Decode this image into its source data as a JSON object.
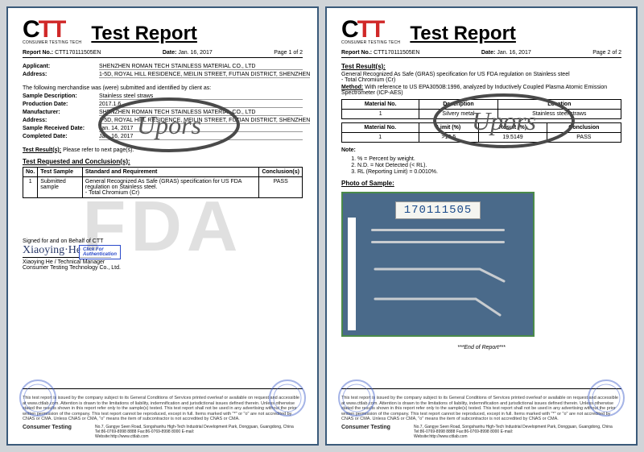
{
  "logo": {
    "main": "CTT",
    "sub": "CONSUMER TESTING TECH",
    "c_color": "#000000",
    "t_color": "#d02828"
  },
  "title": "Test Report",
  "watermark_p1": "FDA",
  "common": {
    "report_no_label": "Report No.:",
    "report_no": "CTT170111505EN",
    "date_label": "Date:",
    "date": "Jan. 16, 2017",
    "footer_company": "Consumer Testing",
    "footer_addr": "No.7, Gangye Seen Road, Songshanhu High-Tech Industrial Development Park, Dongguan, Guangdong, China",
    "footer_tel": "Tel:86-0769-8998 8888    Fax:86-0769-8998 8000    E-mail:",
    "footer_web": "Website:http://www.cttlab.com",
    "disclaimer": "This test report is issued by the company subject to its General Conditions of Services printed overleaf or available on request and accessible at www.cttlab.com. Attention is drawn to the limitations of liability, indemnification and jurisdictional issues defined therein. Unless otherwise stated the results shown in this report refer only to the sample(s) tested. This test report shall not be used in any advertising without the prior written permission of the company. This test report cannot be reproduced, except in full. Items marked with \"*\" or \"o\" are not accredited by CNAS or CMA. Unless CNAS or CMA, \"o\" means the item of subcontractor is not accredited by CNAS or CMA."
  },
  "p1": {
    "page": "Page 1 of 2",
    "applicant_label": "Applicant:",
    "applicant": "SHENZHEN ROMAN TECH STAINLESS MATERIAL CO., LTD",
    "address_label": "Address:",
    "address": "1-5D, ROYAL HILL RESIDENCE, MEILIN STREET, FUTIAN DISTRICT, SHENZHEN",
    "intro": "The following merchandise was (were) submitted and identified by client as:",
    "rows": [
      {
        "k": "Sample Description:",
        "v": "Stainless steel straws"
      },
      {
        "k": "Production Date:",
        "v": "2017.1.6"
      },
      {
        "k": "Manufacturer:",
        "v": "SHENZHEN ROMAN TECH STAINLESS MATERIAL CO., LTD"
      },
      {
        "k": "Address:",
        "v": "1-5D, ROYAL HILL RESIDENCE, MEILIN STREET, FUTIAN DISTRICT, SHENZHEN"
      },
      {
        "k": "Sample Received Date:",
        "v": "Jan. 14, 2017"
      },
      {
        "k": "Completed Date:",
        "v": "Jan. 16, 2017"
      }
    ],
    "results_label": "Test Result(s):",
    "results_text": "Please refer to next page(s).",
    "requested_label": "Test Requested and Conclusion(s):",
    "table_headers": [
      "No.",
      "Test Sample",
      "Standard and Requirement",
      "Conclusion(s)"
    ],
    "table_row": [
      "1",
      "Submitted sample",
      "General Recognized As Safe (GRAS) specification for US FDA regulation on Stainless steel.\n- Total Chromium (Cr)",
      "PASS"
    ],
    "signed_label": "Signed for and on Behalf of CTT",
    "signature": "Xiaoying·He",
    "signer_name": "Xiaoying He / Technical Manager",
    "signer_company": "Consumer Testing Technology Co., Ltd.",
    "auth_text": "Click For\nAuthentication"
  },
  "p2": {
    "page": "Page 2 of 2",
    "results_label": "Test Result(s):",
    "spec": "General Recognized As Safe (GRAS) specification for US FDA regulation on Stainless steel\n- Total Chromium (Cr)",
    "method_label": "Method:",
    "method": "With reference to US EPA3050B:1996, analyzed by Inductively Coupled Plasma Atomic Emission Spectrometer (ICP-AES)",
    "t1_headers": [
      "Material No.",
      "Description",
      "Location"
    ],
    "t1_row": [
      "1",
      "Silvery metal",
      "Stainless steel straws"
    ],
    "t2_headers": [
      "Material No.",
      "Limit (%)",
      "Result (%)",
      "Conclusion"
    ],
    "t2_row": [
      "1",
      ">10.5",
      "19.5149",
      "PASS"
    ],
    "note_label": "Note:",
    "notes": [
      "% = Percent by weight.",
      "N.D. = Not Detected (< RL).",
      "RL (Reporting Limit) = 0.0010%."
    ],
    "photo_label": "Photo of Sample:",
    "sample_id": "170111505",
    "end": "***End of Report***"
  },
  "stamp": {
    "text": "Upors",
    "color": "#5a5a5a",
    "stroke": "#4a4a4a"
  }
}
